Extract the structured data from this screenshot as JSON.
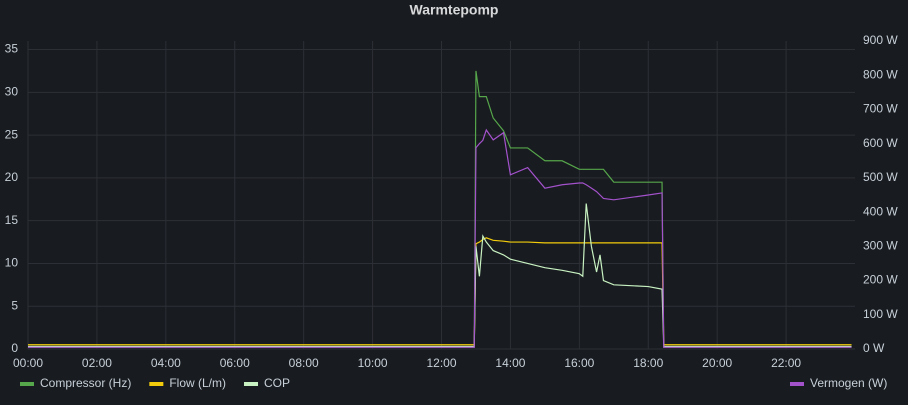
{
  "chart_data": {
    "type": "line",
    "title": "Warmtepomp",
    "x": [
      0,
      12.95,
      13.0,
      13.1,
      13.2,
      13.3,
      13.5,
      13.8,
      14.0,
      14.5,
      15.0,
      15.5,
      16.0,
      16.1,
      16.2,
      16.35,
      16.5,
      16.6,
      16.7,
      17.0,
      18.0,
      18.4,
      18.45,
      23.9
    ],
    "xlim": [
      0,
      24
    ],
    "xticks": [
      {
        "value": 0,
        "label": "00:00"
      },
      {
        "value": 2,
        "label": "02:00"
      },
      {
        "value": 4,
        "label": "04:00"
      },
      {
        "value": 6,
        "label": "06:00"
      },
      {
        "value": 8,
        "label": "08:00"
      },
      {
        "value": 10,
        "label": "10:00"
      },
      {
        "value": 12,
        "label": "12:00"
      },
      {
        "value": 14,
        "label": "14:00"
      },
      {
        "value": 16,
        "label": "16:00"
      },
      {
        "value": 18,
        "label": "18:00"
      },
      {
        "value": 20,
        "label": "20:00"
      },
      {
        "value": 22,
        "label": "22:00"
      }
    ],
    "ylim": [
      0,
      36
    ],
    "yticks": [
      0,
      5,
      10,
      15,
      20,
      25,
      30,
      35
    ],
    "y2lim": [
      0,
      900
    ],
    "y2ticks": [
      {
        "value": 0,
        "label": "0 W"
      },
      {
        "value": 100,
        "label": "100 W"
      },
      {
        "value": 200,
        "label": "200 W"
      },
      {
        "value": 300,
        "label": "300 W"
      },
      {
        "value": 400,
        "label": "400 W"
      },
      {
        "value": 500,
        "label": "500 W"
      },
      {
        "value": 600,
        "label": "600 W"
      },
      {
        "value": 700,
        "label": "700 W"
      },
      {
        "value": 800,
        "label": "800 W"
      },
      {
        "value": 900,
        "label": "900 W"
      }
    ],
    "grid": true,
    "legend": "bottom",
    "series": [
      {
        "name": "Compressor (Hz)",
        "color": "#56a64b",
        "values": [
          0.2,
          0.2,
          32.5,
          29.5,
          29.5,
          29.5,
          27,
          25.5,
          23.5,
          23.5,
          22,
          22,
          21,
          21,
          21,
          21,
          21,
          21,
          21,
          19.5,
          19.5,
          19.5,
          0.2,
          0.2
        ]
      },
      {
        "name": "Flow (L/m)",
        "color": "#f2cc0c",
        "values": [
          0.5,
          0.5,
          12.3,
          12.5,
          12.8,
          13,
          12.7,
          12.6,
          12.5,
          12.5,
          12.4,
          12.4,
          12.4,
          12.4,
          12.4,
          12.4,
          12.4,
          12.4,
          12.4,
          12.4,
          12.4,
          12.4,
          0.5,
          0.5
        ]
      },
      {
        "name": "COP",
        "color": "#c8f2c2",
        "values": [
          0.3,
          0.3,
          12,
          8.5,
          13.2,
          12.5,
          11.5,
          11,
          10.5,
          10,
          9.5,
          9.2,
          8.8,
          8.5,
          17,
          12,
          9,
          11,
          8,
          7.5,
          7.3,
          7,
          0.3,
          0.3
        ]
      },
      {
        "name": "Vermogen (W)",
        "color": "#a352cc",
        "axis": "y2",
        "values": [
          5,
          5,
          588,
          600,
          610,
          640,
          611,
          632,
          509,
          530,
          470,
          480,
          485,
          485,
          480,
          470,
          460,
          450,
          440,
          436,
          450,
          456,
          5,
          5
        ]
      }
    ]
  }
}
